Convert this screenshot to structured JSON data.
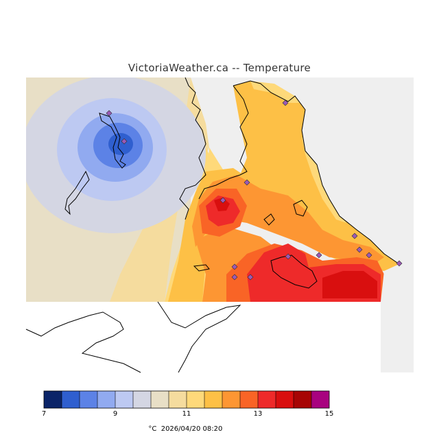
{
  "title": "VictoriaWeather.ca -- Temperature",
  "variable": "Temperature",
  "units": "°C",
  "timestamp": "2026/04/20 08:20",
  "colors": {
    "background_land": "#efefef",
    "water_mask": "#ffffff",
    "coastline": "#000000",
    "station_marker": "#9b59b6"
  },
  "legend": {
    "min": 7,
    "max": 15,
    "ticks": [
      {
        "value": 7,
        "label": "7"
      },
      {
        "value": 9,
        "label": "9"
      },
      {
        "value": 11,
        "label": "11"
      },
      {
        "value": 13,
        "label": "13"
      },
      {
        "value": 15,
        "label": "15"
      }
    ],
    "bins": [
      {
        "from": 7.0,
        "to": 7.5,
        "color": "#0b2468"
      },
      {
        "from": 7.5,
        "to": 8.0,
        "color": "#2f5fcf"
      },
      {
        "from": 8.0,
        "to": 8.5,
        "color": "#5c82e6"
      },
      {
        "from": 8.5,
        "to": 9.0,
        "color": "#91aaf0"
      },
      {
        "from": 9.0,
        "to": 9.5,
        "color": "#bdc9f2"
      },
      {
        "from": 9.5,
        "to": 10.0,
        "color": "#d4d6e3"
      },
      {
        "from": 10.0,
        "to": 10.5,
        "color": "#e8dfc6"
      },
      {
        "from": 10.5,
        "to": 11.0,
        "color": "#f5dc9e"
      },
      {
        "from": 11.0,
        "to": 11.5,
        "color": "#fed97a"
      },
      {
        "from": 11.5,
        "to": 12.0,
        "color": "#fdc046"
      },
      {
        "from": 12.0,
        "to": 12.5,
        "color": "#fd9633"
      },
      {
        "from": 12.5,
        "to": 13.0,
        "color": "#f96426"
      },
      {
        "from": 13.0,
        "to": 13.5,
        "color": "#ee2a2a"
      },
      {
        "from": 13.5,
        "to": 14.0,
        "color": "#d90f0f"
      },
      {
        "from": 14.0,
        "to": 14.5,
        "color": "#a70505"
      },
      {
        "from": 14.5,
        "to": 15.0,
        "color": "#a8027f"
      }
    ]
  },
  "stations_count_shown": 14
}
